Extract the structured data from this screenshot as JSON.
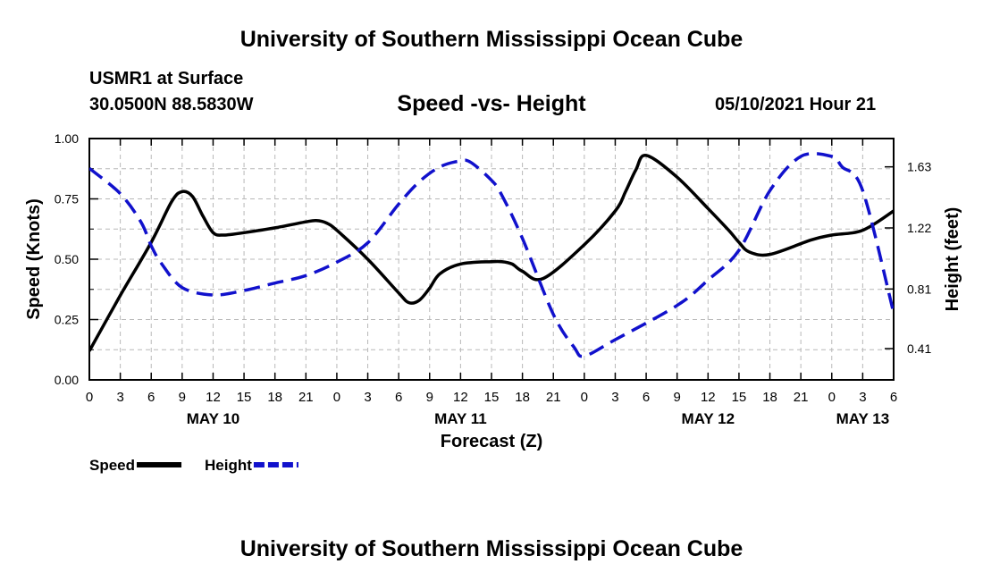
{
  "page": {
    "title_top": "University of Southern Mississippi Ocean Cube",
    "title_bottom": "University of Southern Mississippi Ocean Cube",
    "station": "USMR1 at Surface",
    "coords": "30.0500N  88.5830W",
    "datetime": "05/10/2021 Hour 21"
  },
  "chart_data": {
    "type": "line",
    "title": "Speed -vs- Height",
    "xlabel": "Forecast (Z)",
    "ylabel_left": "Speed (Knots)",
    "ylabel_right": "Height (feet)",
    "x_unit": "forecast hours from May 10 00Z",
    "xlim": [
      0,
      78
    ],
    "ylim_left": [
      0.0,
      1.0
    ],
    "ylim_right": [
      0.2,
      1.82
    ],
    "x_ticks": [
      0,
      3,
      6,
      9,
      12,
      15,
      18,
      21,
      24,
      27,
      30,
      33,
      36,
      39,
      42,
      45,
      48,
      51,
      54,
      57,
      60,
      63,
      66,
      69,
      72,
      75,
      78
    ],
    "x_tick_labels": [
      "0",
      "3",
      "6",
      "9",
      "12",
      "15",
      "18",
      "21",
      "0",
      "3",
      "6",
      "9",
      "12",
      "15",
      "18",
      "21",
      "0",
      "3",
      "6",
      "9",
      "12",
      "15",
      "18",
      "21",
      "0",
      "3",
      "6"
    ],
    "day_labels": [
      {
        "x": 12,
        "label": "MAY 10"
      },
      {
        "x": 36,
        "label": "MAY 11"
      },
      {
        "x": 60,
        "label": "MAY 12"
      },
      {
        "x": 75,
        "label": "MAY 13"
      }
    ],
    "left_ticks": [
      0.0,
      0.25,
      0.5,
      0.75,
      1.0
    ],
    "left_tick_labels": [
      "0.00",
      "0.25",
      "0.50",
      "0.75",
      "1.00"
    ],
    "right_ticks": [
      0.41,
      0.81,
      1.22,
      1.63
    ],
    "right_tick_labels": [
      "0.41",
      "0.81",
      "1.22",
      "1.63"
    ],
    "grid": true,
    "legend_position": "bottom-left",
    "series": [
      {
        "name": "Speed",
        "axis": "left",
        "color": "#000000",
        "dash": "solid",
        "x": [
          0,
          3,
          6,
          8,
          9,
          10,
          11,
          12,
          13,
          15,
          18,
          21,
          22,
          23,
          24,
          27,
          30,
          31,
          32,
          33,
          34,
          36,
          39,
          40,
          41,
          42,
          44,
          48,
          51,
          52,
          53,
          54,
          57,
          60,
          62,
          63,
          64,
          66,
          70,
          72,
          75,
          78
        ],
        "y": [
          0.12,
          0.35,
          0.57,
          0.74,
          0.78,
          0.76,
          0.68,
          0.61,
          0.6,
          0.61,
          0.63,
          0.655,
          0.66,
          0.65,
          0.62,
          0.5,
          0.36,
          0.32,
          0.33,
          0.38,
          0.44,
          0.48,
          0.49,
          0.49,
          0.48,
          0.45,
          0.42,
          0.56,
          0.7,
          0.78,
          0.87,
          0.93,
          0.84,
          0.71,
          0.62,
          0.57,
          0.53,
          0.52,
          0.58,
          0.6,
          0.62,
          0.7
        ]
      },
      {
        "name": "Height",
        "axis": "right",
        "color": "#1111cc",
        "dash": "dashed",
        "x": [
          0,
          3,
          5,
          6,
          7,
          9,
          12,
          15,
          18,
          21,
          24,
          27,
          30,
          32,
          34,
          36,
          37,
          39,
          40,
          42,
          45,
          47,
          48,
          51,
          57,
          60,
          63,
          66,
          69,
          72,
          73,
          75,
          78
        ],
        "y": [
          1.62,
          1.45,
          1.26,
          1.1,
          0.98,
          0.82,
          0.77,
          0.8,
          0.85,
          0.9,
          0.99,
          1.12,
          1.38,
          1.53,
          1.63,
          1.67,
          1.66,
          1.54,
          1.44,
          1.15,
          0.64,
          0.42,
          0.36,
          0.47,
          0.7,
          0.87,
          1.07,
          1.47,
          1.7,
          1.7,
          1.63,
          1.47,
          0.65
        ]
      }
    ]
  }
}
